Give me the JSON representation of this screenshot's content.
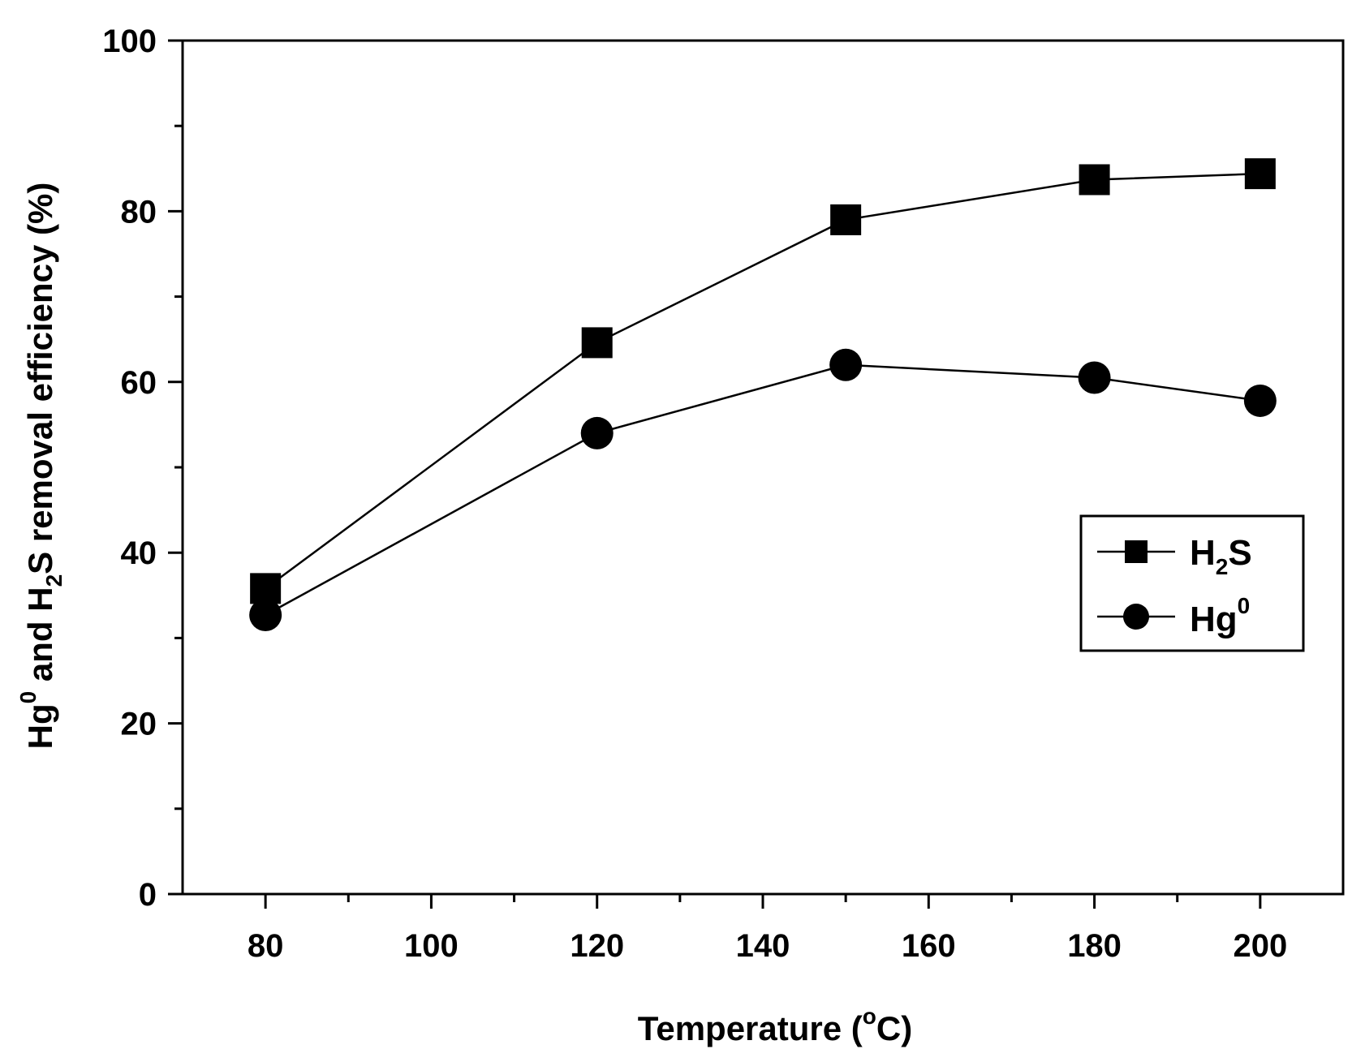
{
  "chart_data": {
    "type": "line",
    "title": "",
    "xlabel": "Temperature (°C)",
    "xlabel_parts": {
      "main": "Temperature (",
      "sup": "o",
      "tail": "C)"
    },
    "ylabel": "Hg0 and H2S removal efficiency (%)",
    "ylabel_parts": {
      "p1": "Hg",
      "sup1": "0",
      "p2": " and H",
      "sub2": "2",
      "p3": "S removal efficiency (%)"
    },
    "xlim": [
      70,
      210
    ],
    "ylim": [
      0,
      100
    ],
    "x_ticks": [
      80,
      100,
      120,
      140,
      160,
      180,
      200
    ],
    "y_ticks": [
      0,
      20,
      40,
      60,
      80,
      100
    ],
    "x_tick_labels": [
      "80",
      "100",
      "120",
      "140",
      "160",
      "180",
      "200"
    ],
    "y_tick_labels": [
      "0",
      "20",
      "40",
      "60",
      "80",
      "100"
    ],
    "grid": false,
    "legend_position": "right",
    "series": [
      {
        "name": "H2S",
        "label_main": "H",
        "label_sub": "2",
        "label_tail": "S",
        "marker": "square",
        "x": [
          80,
          120,
          150,
          180,
          200
        ],
        "values": [
          35.8,
          64.6,
          79.0,
          83.7,
          84.4
        ]
      },
      {
        "name": "Hg0",
        "label_main": "Hg",
        "label_sup": "0",
        "marker": "circle",
        "x": [
          80,
          120,
          150,
          180,
          200
        ],
        "values": [
          32.7,
          54.0,
          62.0,
          60.5,
          57.8
        ]
      }
    ]
  }
}
